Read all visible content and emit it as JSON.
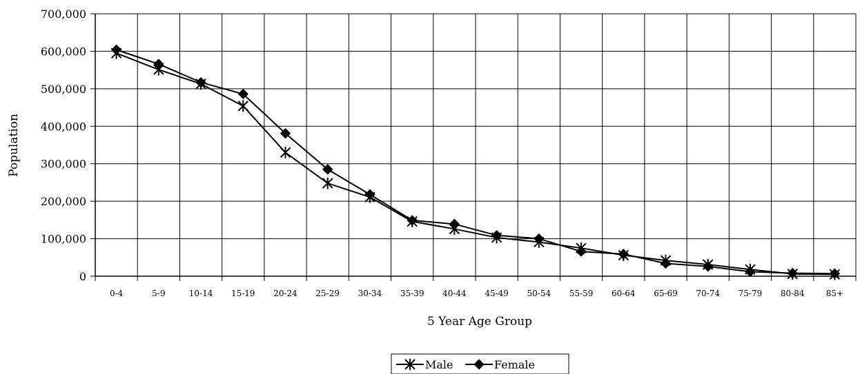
{
  "chart_data": {
    "type": "line",
    "xlabel": "5 Year Age Group",
    "ylabel": "Population",
    "categories": [
      "0-4",
      "5-9",
      "10-14",
      "15-19",
      "20-24",
      "25-29",
      "30-34",
      "35-39",
      "40-44",
      "45-49",
      "50-54",
      "55-59",
      "60-64",
      "65-69",
      "70-74",
      "75-79",
      "80-84",
      "85+"
    ],
    "ylim": [
      0,
      700000
    ],
    "yticks": [
      0,
      100000,
      200000,
      300000,
      400000,
      500000,
      600000,
      700000
    ],
    "ytick_labels": [
      "0",
      "100,000",
      "200,000",
      "300,000",
      "400,000",
      "500,000",
      "600,000",
      "700,000"
    ],
    "grid": true,
    "legend_position": "bottom-center",
    "series": [
      {
        "name": "Male",
        "marker": "asterisk",
        "color": "#000000",
        "values": [
          595000,
          551000,
          513000,
          454000,
          330000,
          248000,
          211000,
          146000,
          126000,
          103000,
          91000,
          75000,
          56000,
          42000,
          31000,
          18000,
          6000,
          5000
        ]
      },
      {
        "name": "Female",
        "marker": "diamond",
        "color": "#000000",
        "values": [
          604000,
          566000,
          517000,
          486000,
          381000,
          285000,
          218000,
          149000,
          139000,
          109000,
          100000,
          66000,
          59000,
          34000,
          26000,
          12000,
          8000,
          7000
        ]
      }
    ]
  }
}
